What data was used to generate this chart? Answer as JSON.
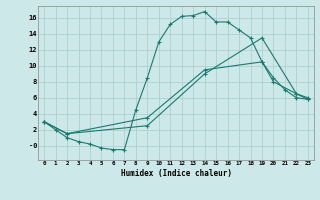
{
  "xlabel": "Humidex (Indice chaleur)",
  "background_color": "#cce8e8",
  "grid_color": "#aacccc",
  "line_color": "#1a7a6e",
  "xlim": [
    -0.5,
    23.5
  ],
  "ylim": [
    -1.8,
    17.5
  ],
  "xticks": [
    0,
    1,
    2,
    3,
    4,
    5,
    6,
    7,
    8,
    9,
    10,
    11,
    12,
    13,
    14,
    15,
    16,
    17,
    18,
    19,
    20,
    21,
    22,
    23
  ],
  "yticks": [
    0,
    2,
    4,
    6,
    8,
    10,
    12,
    14,
    16
  ],
  "ytick_labels": [
    "-0",
    "2",
    "4",
    "6",
    "8",
    "10",
    "12",
    "14",
    "16"
  ],
  "line1_x": [
    0,
    1,
    2,
    3,
    4,
    5,
    6,
    7,
    8,
    9,
    10,
    11,
    12,
    13,
    14,
    15,
    16,
    17,
    18,
    19,
    20,
    21,
    22,
    23
  ],
  "line1_y": [
    3.0,
    2.0,
    1.0,
    0.5,
    0.2,
    -0.3,
    -0.5,
    -0.5,
    4.5,
    8.5,
    13.0,
    15.2,
    16.2,
    16.3,
    16.8,
    15.5,
    15.5,
    14.5,
    13.5,
    10.5,
    8.5,
    7.0,
    6.0,
    5.8
  ],
  "line2_x": [
    0,
    2,
    9,
    14,
    19,
    22,
    23
  ],
  "line2_y": [
    3.0,
    1.5,
    2.5,
    9.0,
    13.5,
    6.5,
    5.8
  ],
  "line3_x": [
    0,
    2,
    9,
    14,
    19,
    20,
    22,
    23
  ],
  "line3_y": [
    3.0,
    1.5,
    3.5,
    9.5,
    10.5,
    8.0,
    6.5,
    6.0
  ]
}
